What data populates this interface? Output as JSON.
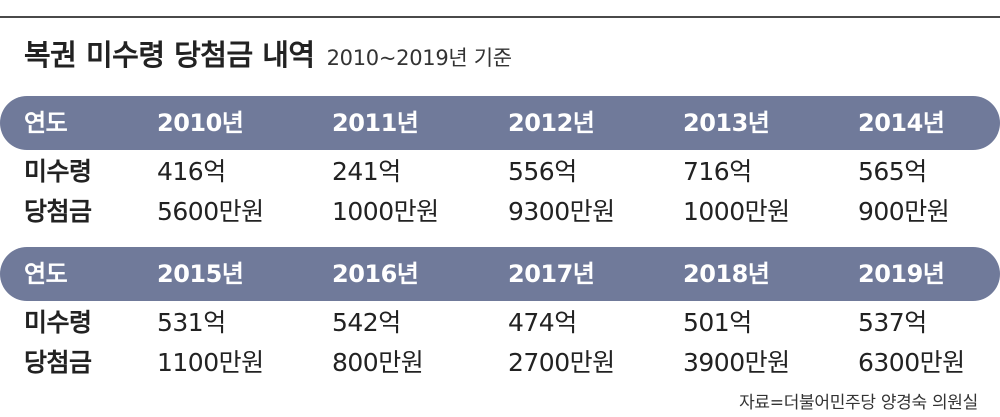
{
  "title": {
    "main": "복권 미수령 당첨금 내역",
    "sub": "2010~2019년 기준"
  },
  "labels": {
    "year": "연도",
    "unclaimed": "미수령",
    "prize": "당첨금"
  },
  "tables": [
    {
      "years": [
        "2010년",
        "2011년",
        "2012년",
        "2013년",
        "2014년"
      ],
      "unclaimed": [
        "416억",
        "241억",
        "556억",
        "716억",
        "565억"
      ],
      "prize": [
        "5600만원",
        "1000만원",
        "9300만원",
        "1000만원",
        "900만원"
      ]
    },
    {
      "years": [
        "2015년",
        "2016년",
        "2017년",
        "2018년",
        "2019년"
      ],
      "unclaimed": [
        "531억",
        "542억",
        "474억",
        "501억",
        "537억"
      ],
      "prize": [
        "1100만원",
        "800만원",
        "2700만원",
        "3900만원",
        "6300만원"
      ]
    }
  ],
  "source": "자료=더불어민주당 양경숙 의원실",
  "colors": {
    "bar": "#707a9a",
    "rule": "#4a4a4a"
  }
}
